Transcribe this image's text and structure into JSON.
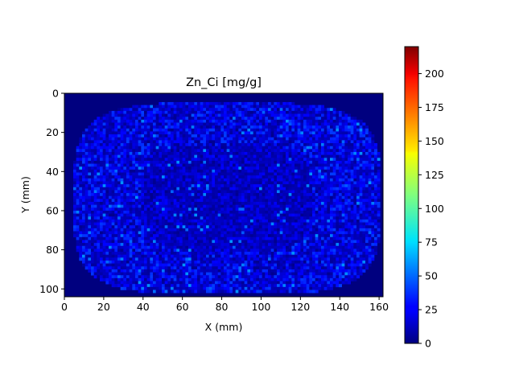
{
  "chart_data": {
    "type": "heatmap",
    "title": "Zn_Ci [mg/g]",
    "xlabel": "X (mm)",
    "ylabel": "Y (mm)",
    "xlim": [
      0,
      162
    ],
    "ylim": [
      104,
      0
    ],
    "xticks": [
      0,
      20,
      40,
      60,
      80,
      100,
      120,
      140,
      160
    ],
    "yticks": [
      0,
      20,
      40,
      60,
      80,
      100
    ],
    "colormap": "jet",
    "colorbar": {
      "range": [
        0,
        220
      ],
      "ticks": [
        0,
        25,
        50,
        75,
        100,
        125,
        150,
        175,
        200
      ]
    },
    "sample_region": {
      "x_extent": [
        4,
        160
      ],
      "y_extent": [
        4,
        102
      ],
      "background_value": 2,
      "typical_value_range": [
        10,
        45
      ],
      "hotspot_value_max": 60
    },
    "grid": false,
    "legend": "none"
  }
}
